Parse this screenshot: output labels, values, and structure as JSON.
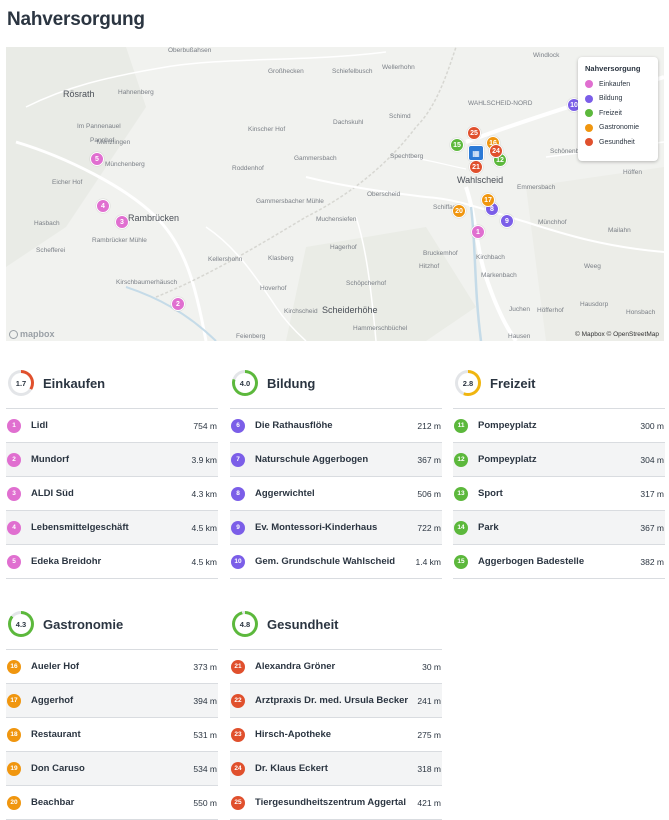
{
  "page_title": "Nahversorgung",
  "colors": {
    "einkaufen": "#e06fd0",
    "bildung": "#7b5ee8",
    "freizeit": "#5cb83c",
    "gastronomie": "#f0960f",
    "gesundheit": "#e0502d",
    "blue_marker": "#2c7ad6"
  },
  "map": {
    "legend_title": "Nahversorgung",
    "legend_items": [
      "Einkaufen",
      "Bildung",
      "Freizeit",
      "Gastronomie",
      "Gesundheit"
    ],
    "places": [
      {
        "text": "Rösrath",
        "big": true
      },
      {
        "text": "Hahnenberg"
      },
      {
        "text": "Im Pannenauel"
      },
      {
        "text": "Menzlingen"
      },
      {
        "text": "Pannhof"
      },
      {
        "text": "Münchenberg"
      },
      {
        "text": "Eicher Hof"
      },
      {
        "text": "Hasbach"
      },
      {
        "text": "Schefferei"
      },
      {
        "text": "Rambrücken",
        "big": true
      },
      {
        "text": "Rambrücker Mühle"
      },
      {
        "text": "Kirschbaumerhäusch"
      },
      {
        "text": "Oberbußahsen"
      },
      {
        "text": "Großhecken"
      },
      {
        "text": "Schiefelbusch"
      },
      {
        "text": "Wellerhohn"
      },
      {
        "text": "Dachskuhl"
      },
      {
        "text": "Kinscher Hof"
      },
      {
        "text": "Gammersbach"
      },
      {
        "text": "Roddenhof"
      },
      {
        "text": "Gammersbacher Mühle"
      },
      {
        "text": "Kellershohn"
      },
      {
        "text": "Muchensiefen"
      },
      {
        "text": "Hagerhof"
      },
      {
        "text": "Klasberg"
      },
      {
        "text": "Hoverhof"
      },
      {
        "text": "Schöpcherhof"
      },
      {
        "text": "Kirchscheid"
      },
      {
        "text": "Scheiderhöhe",
        "big": true
      },
      {
        "text": "Feienberg"
      },
      {
        "text": "Hammerschbüchel"
      },
      {
        "text": "Schimd"
      },
      {
        "text": "Spechtberg"
      },
      {
        "text": "Oberscheid"
      },
      {
        "text": "Wahlscheid",
        "big": true
      },
      {
        "text": "Schiffarth"
      },
      {
        "text": "Bruckemhof"
      },
      {
        "text": "Hitzhof"
      },
      {
        "text": "Kirchbach"
      },
      {
        "text": "Markenbach"
      },
      {
        "text": "Juchen"
      },
      {
        "text": "Höfferhof"
      },
      {
        "text": "Hausen"
      },
      {
        "text": "Windlock"
      },
      {
        "text": "WAHLSCHEID-NORD"
      },
      {
        "text": "Schönenb"
      },
      {
        "text": "Höffen"
      },
      {
        "text": "Emmersbach"
      },
      {
        "text": "Münchhof"
      },
      {
        "text": "Mailahn"
      },
      {
        "text": "Weeg"
      },
      {
        "text": "Hausdorp"
      },
      {
        "text": "Honsbach"
      }
    ],
    "pins": [
      {
        "n": "1",
        "cat": "einkaufen"
      },
      {
        "n": "2",
        "cat": "einkaufen"
      },
      {
        "n": "3",
        "cat": "einkaufen"
      },
      {
        "n": "4",
        "cat": "einkaufen"
      },
      {
        "n": "5",
        "cat": "einkaufen"
      },
      {
        "n": "8",
        "cat": "bildung"
      },
      {
        "n": "9",
        "cat": "bildung"
      },
      {
        "n": "10",
        "cat": "bildung"
      },
      {
        "n": "15",
        "cat": "freizeit"
      },
      {
        "n": "12",
        "cat": "freizeit"
      },
      {
        "n": "17",
        "cat": "gastronomie"
      },
      {
        "n": "20",
        "cat": "gastronomie"
      },
      {
        "n": "16",
        "cat": "gastronomie"
      },
      {
        "n": "25",
        "cat": "gesundheit"
      },
      {
        "n": "24",
        "cat": "gesundheit"
      },
      {
        "n": "21",
        "cat": "gesundheit"
      }
    ],
    "credit": "© Mapbox © OpenStreetMap",
    "logo": "mapbox"
  },
  "categories": [
    {
      "key": "einkaufen",
      "title": "Einkaufen",
      "score": "1.7",
      "score_fraction": 0.34,
      "items": [
        {
          "n": "1",
          "name": "Lidl",
          "dist": "754 m"
        },
        {
          "n": "2",
          "name": "Mundorf",
          "dist": "3.9 km"
        },
        {
          "n": "3",
          "name": "ALDI Süd",
          "dist": "4.3 km"
        },
        {
          "n": "4",
          "name": "Lebensmittelgeschäft",
          "dist": "4.5 km"
        },
        {
          "n": "5",
          "name": "Edeka Breidohr",
          "dist": "4.5 km"
        }
      ]
    },
    {
      "key": "bildung",
      "title": "Bildung",
      "score": "4.0",
      "score_fraction": 0.8,
      "items": [
        {
          "n": "6",
          "name": "Die Rathausflöhe",
          "dist": "212 m"
        },
        {
          "n": "7",
          "name": "Naturschule Aggerbogen",
          "dist": "367 m"
        },
        {
          "n": "8",
          "name": "Aggerwichtel",
          "dist": "506 m"
        },
        {
          "n": "9",
          "name": "Ev. Montessori-Kinderhaus",
          "dist": "722 m"
        },
        {
          "n": "10",
          "name": "Gem. Grundschule Wahlscheid",
          "dist": "1.4 km"
        }
      ]
    },
    {
      "key": "freizeit",
      "title": "Freizeit",
      "score": "2.8",
      "score_fraction": 0.56,
      "items": [
        {
          "n": "11",
          "name": "Pompeyplatz",
          "dist": "300 m"
        },
        {
          "n": "12",
          "name": "Pompeyplatz",
          "dist": "304 m"
        },
        {
          "n": "13",
          "name": "Sport",
          "dist": "317 m"
        },
        {
          "n": "14",
          "name": "Park",
          "dist": "367 m"
        },
        {
          "n": "15",
          "name": "Aggerbogen Badestelle",
          "dist": "382 m"
        }
      ]
    },
    {
      "key": "gastronomie",
      "title": "Gastronomie",
      "score": "4.3",
      "score_fraction": 0.86,
      "items": [
        {
          "n": "16",
          "name": "Aueler Hof",
          "dist": "373 m"
        },
        {
          "n": "17",
          "name": "Aggerhof",
          "dist": "394 m"
        },
        {
          "n": "18",
          "name": "Restaurant",
          "dist": "531 m"
        },
        {
          "n": "19",
          "name": "Don Caruso",
          "dist": "534 m"
        },
        {
          "n": "20",
          "name": "Beachbar",
          "dist": "550 m"
        }
      ]
    },
    {
      "key": "gesundheit",
      "title": "Gesundheit",
      "score": "4.8",
      "score_fraction": 0.96,
      "items": [
        {
          "n": "21",
          "name": "Alexandra Gröner",
          "dist": "30 m"
        },
        {
          "n": "22",
          "name": "Arztpraxis Dr. med. Ursula Becker",
          "dist": "241 m"
        },
        {
          "n": "23",
          "name": "Hirsch-Apotheke",
          "dist": "275 m"
        },
        {
          "n": "24",
          "name": "Dr. Klaus Eckert",
          "dist": "318 m"
        },
        {
          "n": "25",
          "name": "Tiergesundheitszentrum Aggertal",
          "dist": "421 m"
        }
      ]
    }
  ]
}
